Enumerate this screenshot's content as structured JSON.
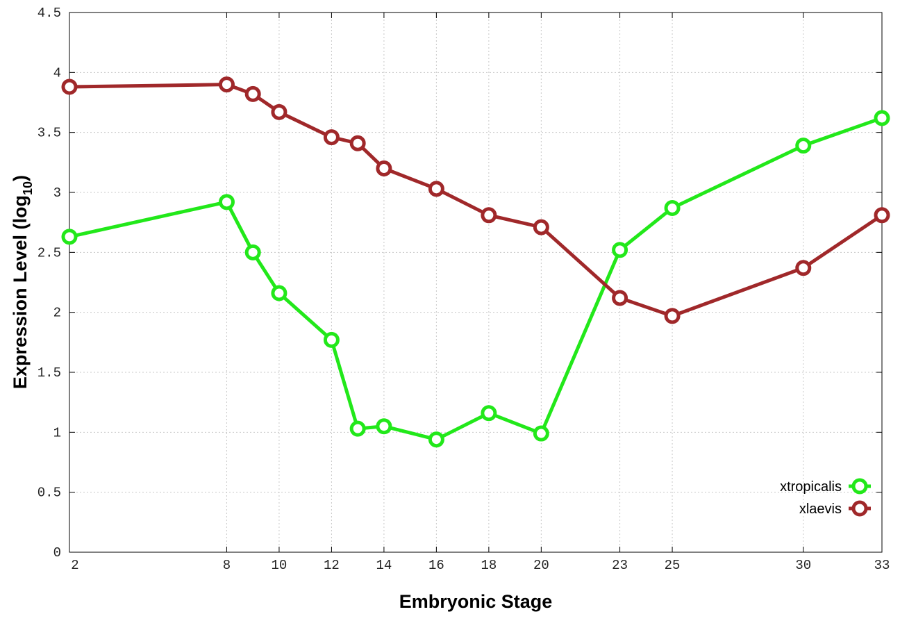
{
  "chart_data": {
    "type": "line",
    "title": "",
    "xlabel": "Embryonic Stage",
    "ylabel": "Expression Level (log",
    "ylabel_sub": "10",
    "ylabel_close": ")",
    "xlim": [
      2,
      33
    ],
    "ylim": [
      0,
      4.5
    ],
    "xticks": [
      2,
      8,
      10,
      12,
      14,
      16,
      18,
      20,
      23,
      25,
      30,
      33
    ],
    "yticks": [
      "0",
      "0.5",
      "1",
      "1.5",
      "2",
      "2.5",
      "3",
      "3.5",
      "4",
      "4.5"
    ],
    "grid": true,
    "legend_position": "bottom-right",
    "x": [
      2,
      8,
      9,
      10,
      12,
      13,
      14,
      16,
      18,
      20,
      23,
      25,
      30,
      33
    ],
    "series": [
      {
        "name": "xtropicalis",
        "color": "#22e81a",
        "values": [
          2.63,
          2.92,
          2.5,
          2.16,
          1.77,
          1.03,
          1.05,
          0.94,
          1.16,
          0.99,
          2.52,
          2.87,
          3.39,
          3.62
        ]
      },
      {
        "name": "xlaevis",
        "color": "#a0282a",
        "values": [
          3.88,
          3.9,
          3.82,
          3.67,
          3.46,
          3.41,
          3.2,
          3.03,
          2.81,
          2.71,
          2.12,
          1.97,
          2.37,
          2.81
        ]
      }
    ]
  }
}
